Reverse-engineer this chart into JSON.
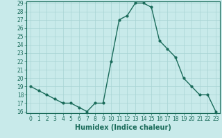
{
  "x": [
    0,
    1,
    2,
    3,
    4,
    5,
    6,
    7,
    8,
    9,
    10,
    11,
    12,
    13,
    14,
    15,
    16,
    17,
    18,
    19,
    20,
    21,
    22,
    23
  ],
  "y": [
    19,
    18.5,
    18,
    17.5,
    17,
    17,
    16.5,
    16,
    17,
    17,
    22,
    27,
    27.5,
    29,
    29,
    28.5,
    24.5,
    23.5,
    22.5,
    20,
    19,
    18,
    18,
    16
  ],
  "line_color": "#1a6b5a",
  "marker": "o",
  "marker_size": 2,
  "bg_color": "#c8eaea",
  "grid_color": "#a8d4d4",
  "xlabel": "Humidex (Indice chaleur)",
  "ylabel": "",
  "ylim": [
    16,
    29
  ],
  "xlim": [
    -0.5,
    23.5
  ],
  "yticks": [
    16,
    17,
    18,
    19,
    20,
    21,
    22,
    23,
    24,
    25,
    26,
    27,
    28,
    29
  ],
  "xticks": [
    0,
    1,
    2,
    3,
    4,
    5,
    6,
    7,
    8,
    9,
    10,
    11,
    12,
    13,
    14,
    15,
    16,
    17,
    18,
    19,
    20,
    21,
    22,
    23
  ],
  "tick_label_fontsize": 5.5,
  "xlabel_fontsize": 7,
  "line_width": 1.0
}
